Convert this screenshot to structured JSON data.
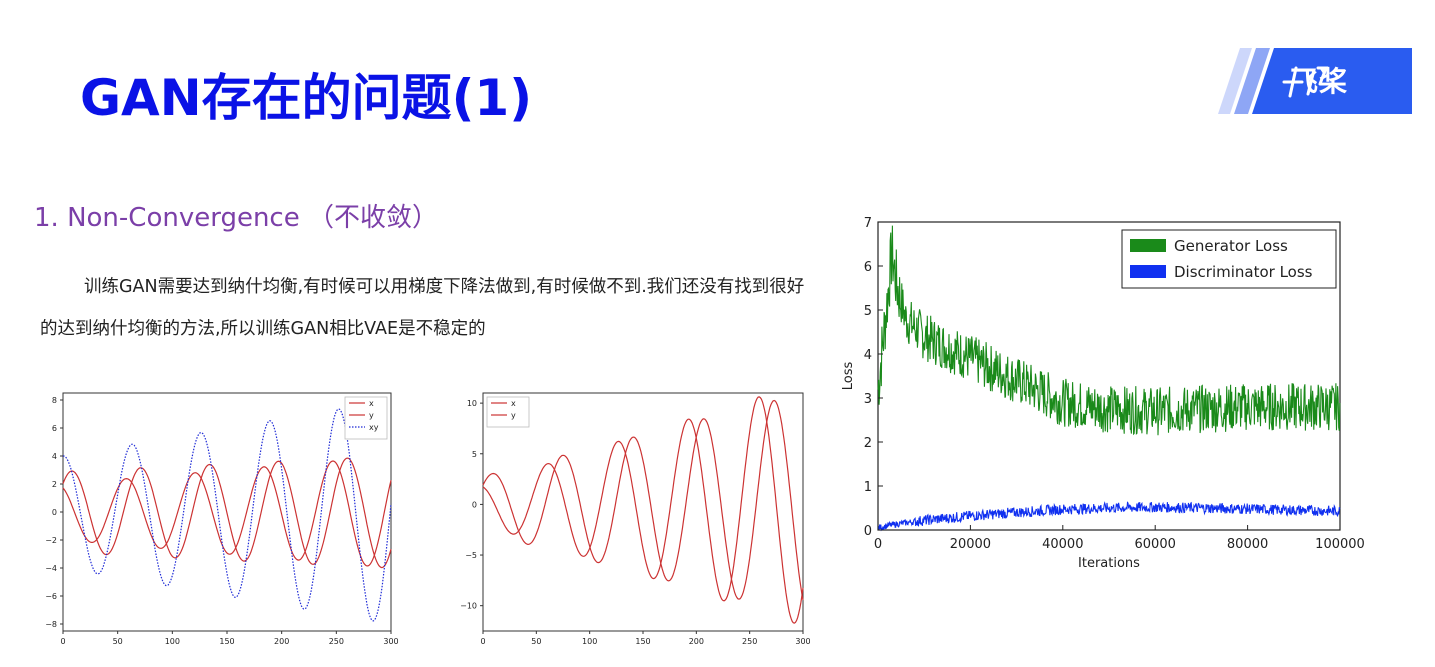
{
  "slide": {
    "title": "GAN存在的问题(1)",
    "logo_text": "飞桨",
    "section_heading": "1.  Non-Convergence  （不收敛）",
    "paragraph": "训练GAN需要达到纳什均衡,有时候可以用梯度下降法做到,有时候做不到.我们还没有找到很好的达到纳什均衡的方法,所以训练GAN相比VAE是不稳定的"
  },
  "colors": {
    "title": "#0a12e6",
    "heading": "#7b3fa8",
    "red": "#cc3333",
    "blue_dotted": "#1f2bd6",
    "green": "#1a8a1a",
    "blue": "#1030f0"
  },
  "chart_data": [
    {
      "type": "line",
      "xlim": [
        0,
        300
      ],
      "ylim": [
        -8.5,
        8.5
      ],
      "xticks": [
        "0",
        "50",
        "100",
        "150",
        "200",
        "250",
        "300"
      ],
      "yticks": [
        "8",
        "6",
        "4",
        "2",
        "0",
        "−2",
        "−4",
        "−6",
        "−8"
      ],
      "legend_position": "top-right",
      "series": [
        {
          "name": "x",
          "style": "solid",
          "color": "#cc3333",
          "amp": [
            2.9,
            4.0
          ],
          "period": 63,
          "phase": 0.77
        },
        {
          "name": "y",
          "style": "solid",
          "color": "#cc3333",
          "amp": [
            2.0,
            4.0
          ],
          "period": 63,
          "phase": 2.1,
          "start": 2.0
        },
        {
          "name": "xy",
          "style": "dotted",
          "color": "#1f2bd6",
          "amp": [
            4.0,
            8.0
          ],
          "period": 63,
          "phase": 1.57
        }
      ]
    },
    {
      "type": "line",
      "xlim": [
        0,
        300
      ],
      "ylim": [
        -12.5,
        11
      ],
      "xticks": [
        "0",
        "50",
        "100",
        "150",
        "200",
        "250",
        "300"
      ],
      "yticks": [
        "10",
        "5",
        "0",
        "−5",
        "−10"
      ],
      "legend_position": "top-left",
      "series": [
        {
          "name": "x",
          "style": "solid",
          "color": "#cc3333",
          "amp": [
            2.8,
            11.0
          ],
          "period": 66,
          "phase": 0.75
        },
        {
          "name": "y",
          "style": "solid",
          "color": "#cc3333",
          "amp": [
            2.0,
            12.0
          ],
          "period": 66,
          "phase": 2.1
        }
      ]
    },
    {
      "type": "area",
      "xlim": [
        0,
        100000
      ],
      "ylim": [
        0,
        7
      ],
      "xlabel": "Iterations",
      "ylabel": "Loss",
      "xticks": [
        "0",
        "20000",
        "40000",
        "60000",
        "80000",
        "100000"
      ],
      "yticks": [
        "0",
        "1",
        "2",
        "3",
        "4",
        "5",
        "6",
        "7"
      ],
      "legend_position": "top-right",
      "series": [
        {
          "name": "Generator Loss",
          "color": "#1a8a1a",
          "x": [
            0,
            1000,
            2000,
            3000,
            4000,
            6000,
            10000,
            20000,
            30000,
            40000,
            50000,
            60000,
            70000,
            80000,
            90000,
            100000
          ],
          "y": [
            3.2,
            4.2,
            5.2,
            6.3,
            5.6,
            4.8,
            4.4,
            3.9,
            3.4,
            2.9,
            2.75,
            2.7,
            2.75,
            2.8,
            2.8,
            2.8
          ]
        },
        {
          "name": "Discriminator Loss",
          "color": "#1030f0",
          "x": [
            0,
            2000,
            5000,
            10000,
            20000,
            30000,
            40000,
            50000,
            60000,
            70000,
            80000,
            90000,
            100000
          ],
          "y": [
            0.05,
            0.1,
            0.15,
            0.22,
            0.32,
            0.4,
            0.47,
            0.5,
            0.52,
            0.5,
            0.48,
            0.45,
            0.43
          ]
        }
      ]
    }
  ]
}
